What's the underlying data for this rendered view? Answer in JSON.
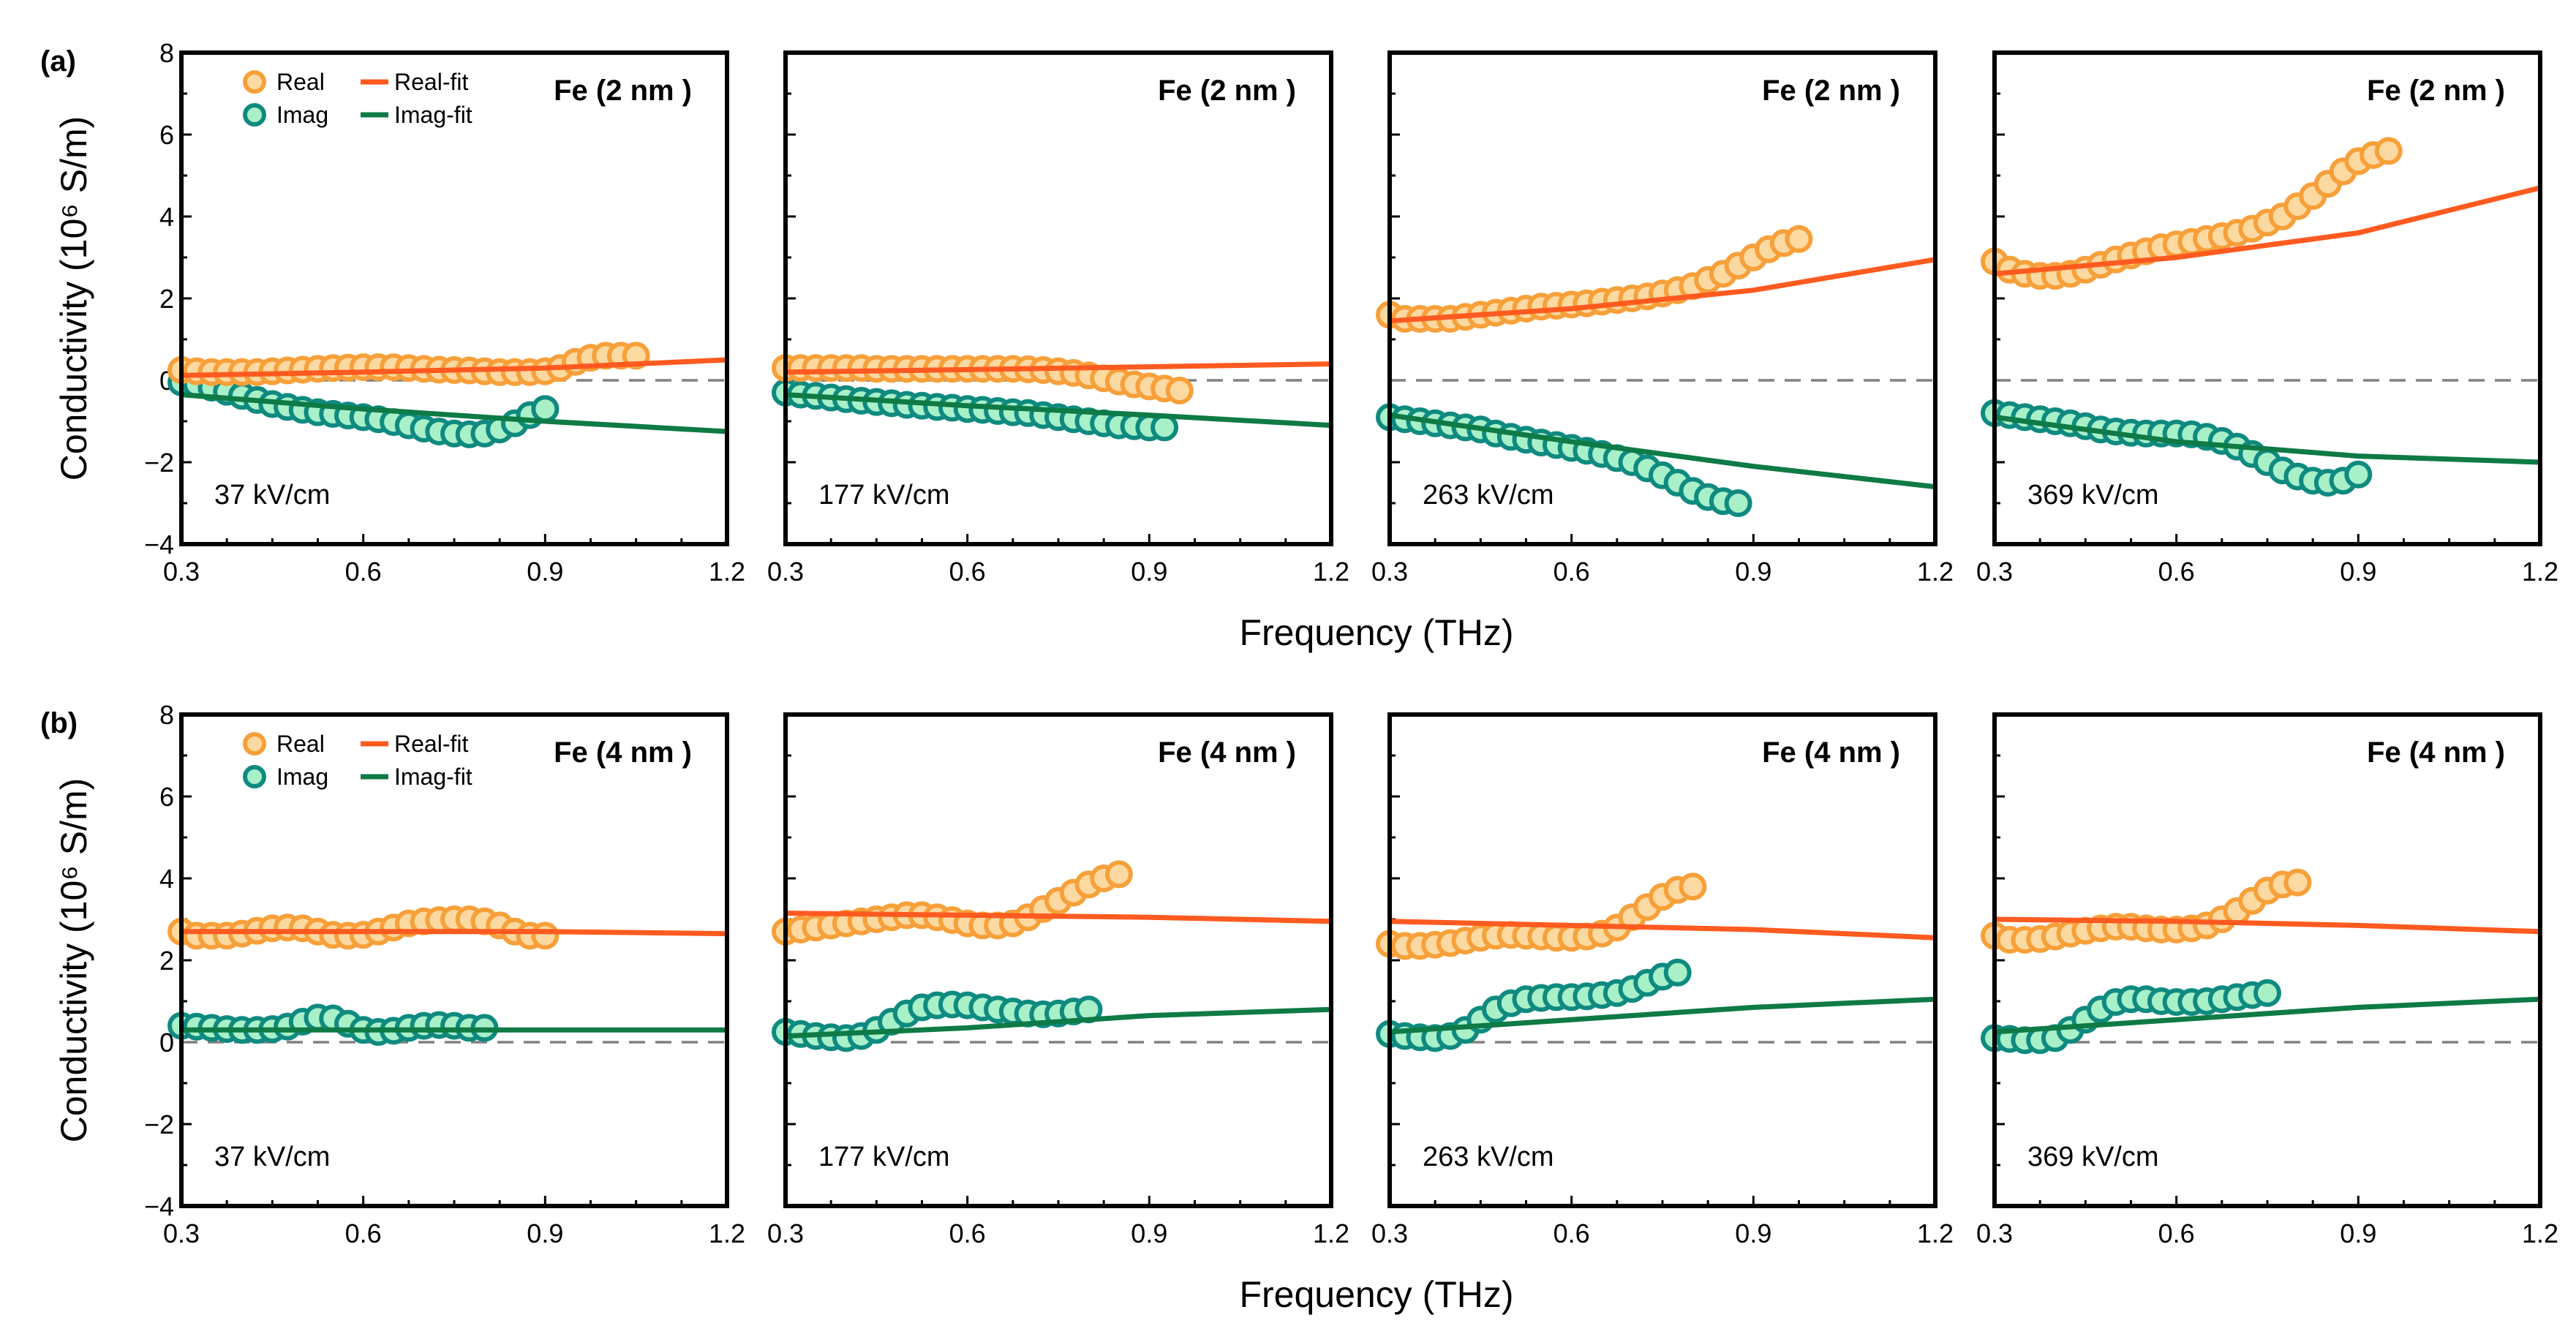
{
  "figure": {
    "rows": [
      {
        "panel_label": "(a)",
        "title": "Fe (2 nm )",
        "xlabel": "Frequency (THz)",
        "ylabel": "Conductivity (10⁶ S/m)"
      },
      {
        "panel_label": "(b)",
        "title": "Fe (4 nm )",
        "xlabel": "Frequency (THz)",
        "ylabel": "Conductivity (10⁶ S/m)"
      }
    ],
    "fields": [
      "37 kV/cm",
      "177 kV/cm",
      "263 kV/cm",
      "369 kV/cm"
    ],
    "legend": {
      "real": "Real",
      "imag": "Imag",
      "real_fit": "Real-fit",
      "imag_fit": "Imag-fit"
    },
    "colors": {
      "real_marker_edge": "#f7a03a",
      "real_marker_fill": "#fcd9a1",
      "imag_marker_edge": "#0f8a80",
      "imag_marker_fill": "#a8f0c8",
      "real_fit": "#ff5a1f",
      "imag_fit": "#0e7a45",
      "zero_line": "#808080"
    }
  },
  "chart_data": {
    "type": "scatter",
    "xlim": [
      0.3,
      1.2
    ],
    "ylim": [
      -4,
      8
    ],
    "xticks": [
      "0.3",
      "0.6",
      "0.9",
      "1.2"
    ],
    "yticks": [
      "8",
      "6",
      "4",
      "2",
      "0",
      "−2",
      "−4"
    ],
    "xlabel": "Frequency (THz)",
    "ylabel": "Conductivity (10⁶ S/m)",
    "x_start": 0.3,
    "x_step": 0.025,
    "rows": [
      {
        "label": "(a)",
        "sample": "Fe (2 nm )",
        "panels": [
          {
            "field": "37 kV/cm",
            "real": [
              0.25,
              0.22,
              0.2,
              0.2,
              0.2,
              0.2,
              0.22,
              0.24,
              0.26,
              0.28,
              0.3,
              0.31,
              0.32,
              0.32,
              0.32,
              0.3,
              0.28,
              0.26,
              0.25,
              0.24,
              0.22,
              0.2,
              0.2,
              0.2,
              0.22,
              0.3,
              0.45,
              0.55,
              0.6,
              0.6,
              0.6
            ],
            "imag": [
              -0.05,
              -0.1,
              -0.18,
              -0.28,
              -0.38,
              -0.48,
              -0.58,
              -0.65,
              -0.72,
              -0.78,
              -0.82,
              -0.86,
              -0.9,
              -0.95,
              -1.02,
              -1.1,
              -1.18,
              -1.25,
              -1.3,
              -1.32,
              -1.3,
              -1.2,
              -1.05,
              -0.85,
              -0.7
            ],
            "real_fit": [
              [
                0.3,
                0.12
              ],
              [
                0.6,
                0.2
              ],
              [
                0.9,
                0.3
              ],
              [
                1.2,
                0.5
              ]
            ],
            "imag_fit": [
              [
                0.3,
                -0.35
              ],
              [
                0.6,
                -0.7
              ],
              [
                0.9,
                -1.0
              ],
              [
                1.2,
                -1.25
              ]
            ]
          },
          {
            "field": "177 kV/cm",
            "real": [
              0.3,
              0.3,
              0.3,
              0.3,
              0.3,
              0.3,
              0.28,
              0.28,
              0.28,
              0.28,
              0.28,
              0.28,
              0.28,
              0.28,
              0.28,
              0.28,
              0.27,
              0.25,
              0.22,
              0.18,
              0.12,
              0.05,
              -0.03,
              -0.1,
              -0.15,
              -0.2,
              -0.25
            ],
            "imag": [
              -0.3,
              -0.35,
              -0.38,
              -0.42,
              -0.46,
              -0.5,
              -0.53,
              -0.56,
              -0.6,
              -0.62,
              -0.65,
              -0.67,
              -0.7,
              -0.72,
              -0.75,
              -0.78,
              -0.8,
              -0.85,
              -0.9,
              -0.95,
              -1.0,
              -1.05,
              -1.1,
              -1.12,
              -1.15,
              -1.15
            ],
            "real_fit": [
              [
                0.3,
                0.2
              ],
              [
                0.6,
                0.26
              ],
              [
                0.9,
                0.33
              ],
              [
                1.2,
                0.4
              ]
            ],
            "imag_fit": [
              [
                0.3,
                -0.35
              ],
              [
                0.6,
                -0.62
              ],
              [
                0.9,
                -0.85
              ],
              [
                1.2,
                -1.1
              ]
            ]
          },
          {
            "field": "263 kV/cm",
            "real": [
              1.6,
              1.5,
              1.5,
              1.5,
              1.5,
              1.55,
              1.6,
              1.65,
              1.7,
              1.75,
              1.8,
              1.82,
              1.85,
              1.88,
              1.92,
              1.96,
              2.0,
              2.05,
              2.12,
              2.2,
              2.3,
              2.45,
              2.6,
              2.8,
              3.0,
              3.2,
              3.35,
              3.45
            ],
            "imag": [
              -0.9,
              -0.95,
              -1.0,
              -1.05,
              -1.1,
              -1.15,
              -1.2,
              -1.3,
              -1.38,
              -1.45,
              -1.52,
              -1.58,
              -1.65,
              -1.72,
              -1.8,
              -1.9,
              -2.0,
              -2.15,
              -2.32,
              -2.5,
              -2.7,
              -2.85,
              -2.95,
              -3.0
            ],
            "real_fit": [
              [
                0.3,
                1.45
              ],
              [
                0.6,
                1.75
              ],
              [
                0.9,
                2.2
              ],
              [
                1.2,
                2.95
              ]
            ],
            "imag_fit": [
              [
                0.3,
                -0.85
              ],
              [
                0.6,
                -1.5
              ],
              [
                0.9,
                -2.1
              ],
              [
                1.2,
                -2.6
              ]
            ]
          },
          {
            "field": "369 kV/cm",
            "real": [
              2.9,
              2.7,
              2.6,
              2.55,
              2.55,
              2.6,
              2.7,
              2.82,
              2.95,
              3.05,
              3.15,
              3.25,
              3.32,
              3.38,
              3.45,
              3.52,
              3.6,
              3.7,
              3.85,
              4.0,
              4.25,
              4.5,
              4.8,
              5.1,
              5.35,
              5.5,
              5.6
            ],
            "imag": [
              -0.8,
              -0.85,
              -0.9,
              -0.95,
              -1.0,
              -1.05,
              -1.12,
              -1.2,
              -1.25,
              -1.28,
              -1.3,
              -1.3,
              -1.3,
              -1.32,
              -1.38,
              -1.48,
              -1.62,
              -1.8,
              -2.0,
              -2.2,
              -2.35,
              -2.45,
              -2.5,
              -2.45,
              -2.3
            ],
            "real_fit": [
              [
                0.3,
                2.6
              ],
              [
                0.6,
                3.0
              ],
              [
                0.9,
                3.6
              ],
              [
                1.2,
                4.7
              ]
            ],
            "imag_fit": [
              [
                0.3,
                -0.9
              ],
              [
                0.6,
                -1.5
              ],
              [
                0.9,
                -1.85
              ],
              [
                1.2,
                -2.0
              ]
            ]
          }
        ]
      },
      {
        "label": "(b)",
        "sample": "Fe (4 nm )",
        "panels": [
          {
            "field": "37 kV/cm",
            "real": [
              2.7,
              2.6,
              2.6,
              2.6,
              2.65,
              2.72,
              2.78,
              2.8,
              2.78,
              2.7,
              2.62,
              2.6,
              2.62,
              2.7,
              2.8,
              2.9,
              2.95,
              2.98,
              3.0,
              3.0,
              2.95,
              2.85,
              2.7,
              2.6,
              2.6
            ],
            "imag": [
              0.4,
              0.38,
              0.35,
              0.32,
              0.3,
              0.3,
              0.32,
              0.38,
              0.5,
              0.6,
              0.58,
              0.45,
              0.3,
              0.25,
              0.28,
              0.35,
              0.4,
              0.42,
              0.4,
              0.35,
              0.35
            ],
            "real_fit": [
              [
                0.3,
                2.7
              ],
              [
                0.6,
                2.7
              ],
              [
                0.9,
                2.7
              ],
              [
                1.2,
                2.65
              ]
            ],
            "imag_fit": [
              [
                0.3,
                0.3
              ],
              [
                0.6,
                0.3
              ],
              [
                0.9,
                0.3
              ],
              [
                1.2,
                0.3
              ]
            ]
          },
          {
            "field": "177 kV/cm",
            "real": [
              2.7,
              2.75,
              2.8,
              2.85,
              2.9,
              2.95,
              3.0,
              3.05,
              3.1,
              3.1,
              3.05,
              2.98,
              2.9,
              2.85,
              2.85,
              2.9,
              3.05,
              3.25,
              3.45,
              3.65,
              3.85,
              4.0,
              4.1
            ],
            "imag": [
              0.25,
              0.2,
              0.15,
              0.12,
              0.1,
              0.15,
              0.3,
              0.5,
              0.7,
              0.85,
              0.9,
              0.92,
              0.9,
              0.85,
              0.8,
              0.75,
              0.7,
              0.68,
              0.7,
              0.75,
              0.8
            ],
            "real_fit": [
              [
                0.3,
                3.15
              ],
              [
                0.6,
                3.1
              ],
              [
                0.9,
                3.05
              ],
              [
                1.2,
                2.95
              ]
            ],
            "imag_fit": [
              [
                0.3,
                0.15
              ],
              [
                0.6,
                0.35
              ],
              [
                0.9,
                0.65
              ],
              [
                1.2,
                0.8
              ]
            ]
          },
          {
            "field": "263 kV/cm",
            "real": [
              2.4,
              2.35,
              2.35,
              2.38,
              2.42,
              2.48,
              2.55,
              2.6,
              2.62,
              2.6,
              2.58,
              2.55,
              2.55,
              2.58,
              2.65,
              2.8,
              3.05,
              3.3,
              3.55,
              3.72,
              3.8
            ],
            "imag": [
              0.2,
              0.15,
              0.12,
              0.1,
              0.15,
              0.3,
              0.55,
              0.8,
              0.95,
              1.05,
              1.08,
              1.1,
              1.1,
              1.12,
              1.15,
              1.2,
              1.3,
              1.45,
              1.6,
              1.7
            ],
            "real_fit": [
              [
                0.3,
                2.95
              ],
              [
                0.6,
                2.85
              ],
              [
                0.9,
                2.75
              ],
              [
                1.2,
                2.55
              ]
            ],
            "imag_fit": [
              [
                0.3,
                0.25
              ],
              [
                0.6,
                0.55
              ],
              [
                0.9,
                0.85
              ],
              [
                1.2,
                1.05
              ]
            ]
          },
          {
            "field": "369 kV/cm",
            "real": [
              2.6,
              2.5,
              2.5,
              2.52,
              2.58,
              2.65,
              2.72,
              2.78,
              2.82,
              2.82,
              2.78,
              2.75,
              2.75,
              2.78,
              2.85,
              3.0,
              3.2,
              3.45,
              3.7,
              3.85,
              3.9
            ],
            "imag": [
              0.1,
              0.08,
              0.05,
              0.05,
              0.1,
              0.3,
              0.55,
              0.8,
              0.98,
              1.05,
              1.05,
              1.0,
              0.98,
              0.98,
              1.0,
              1.05,
              1.1,
              1.15,
              1.2
            ],
            "real_fit": [
              [
                0.3,
                3.0
              ],
              [
                0.6,
                2.95
              ],
              [
                0.9,
                2.85
              ],
              [
                1.2,
                2.7
              ]
            ],
            "imag_fit": [
              [
                0.3,
                0.25
              ],
              [
                0.6,
                0.55
              ],
              [
                0.9,
                0.85
              ],
              [
                1.2,
                1.05
              ]
            ]
          }
        ]
      }
    ]
  }
}
